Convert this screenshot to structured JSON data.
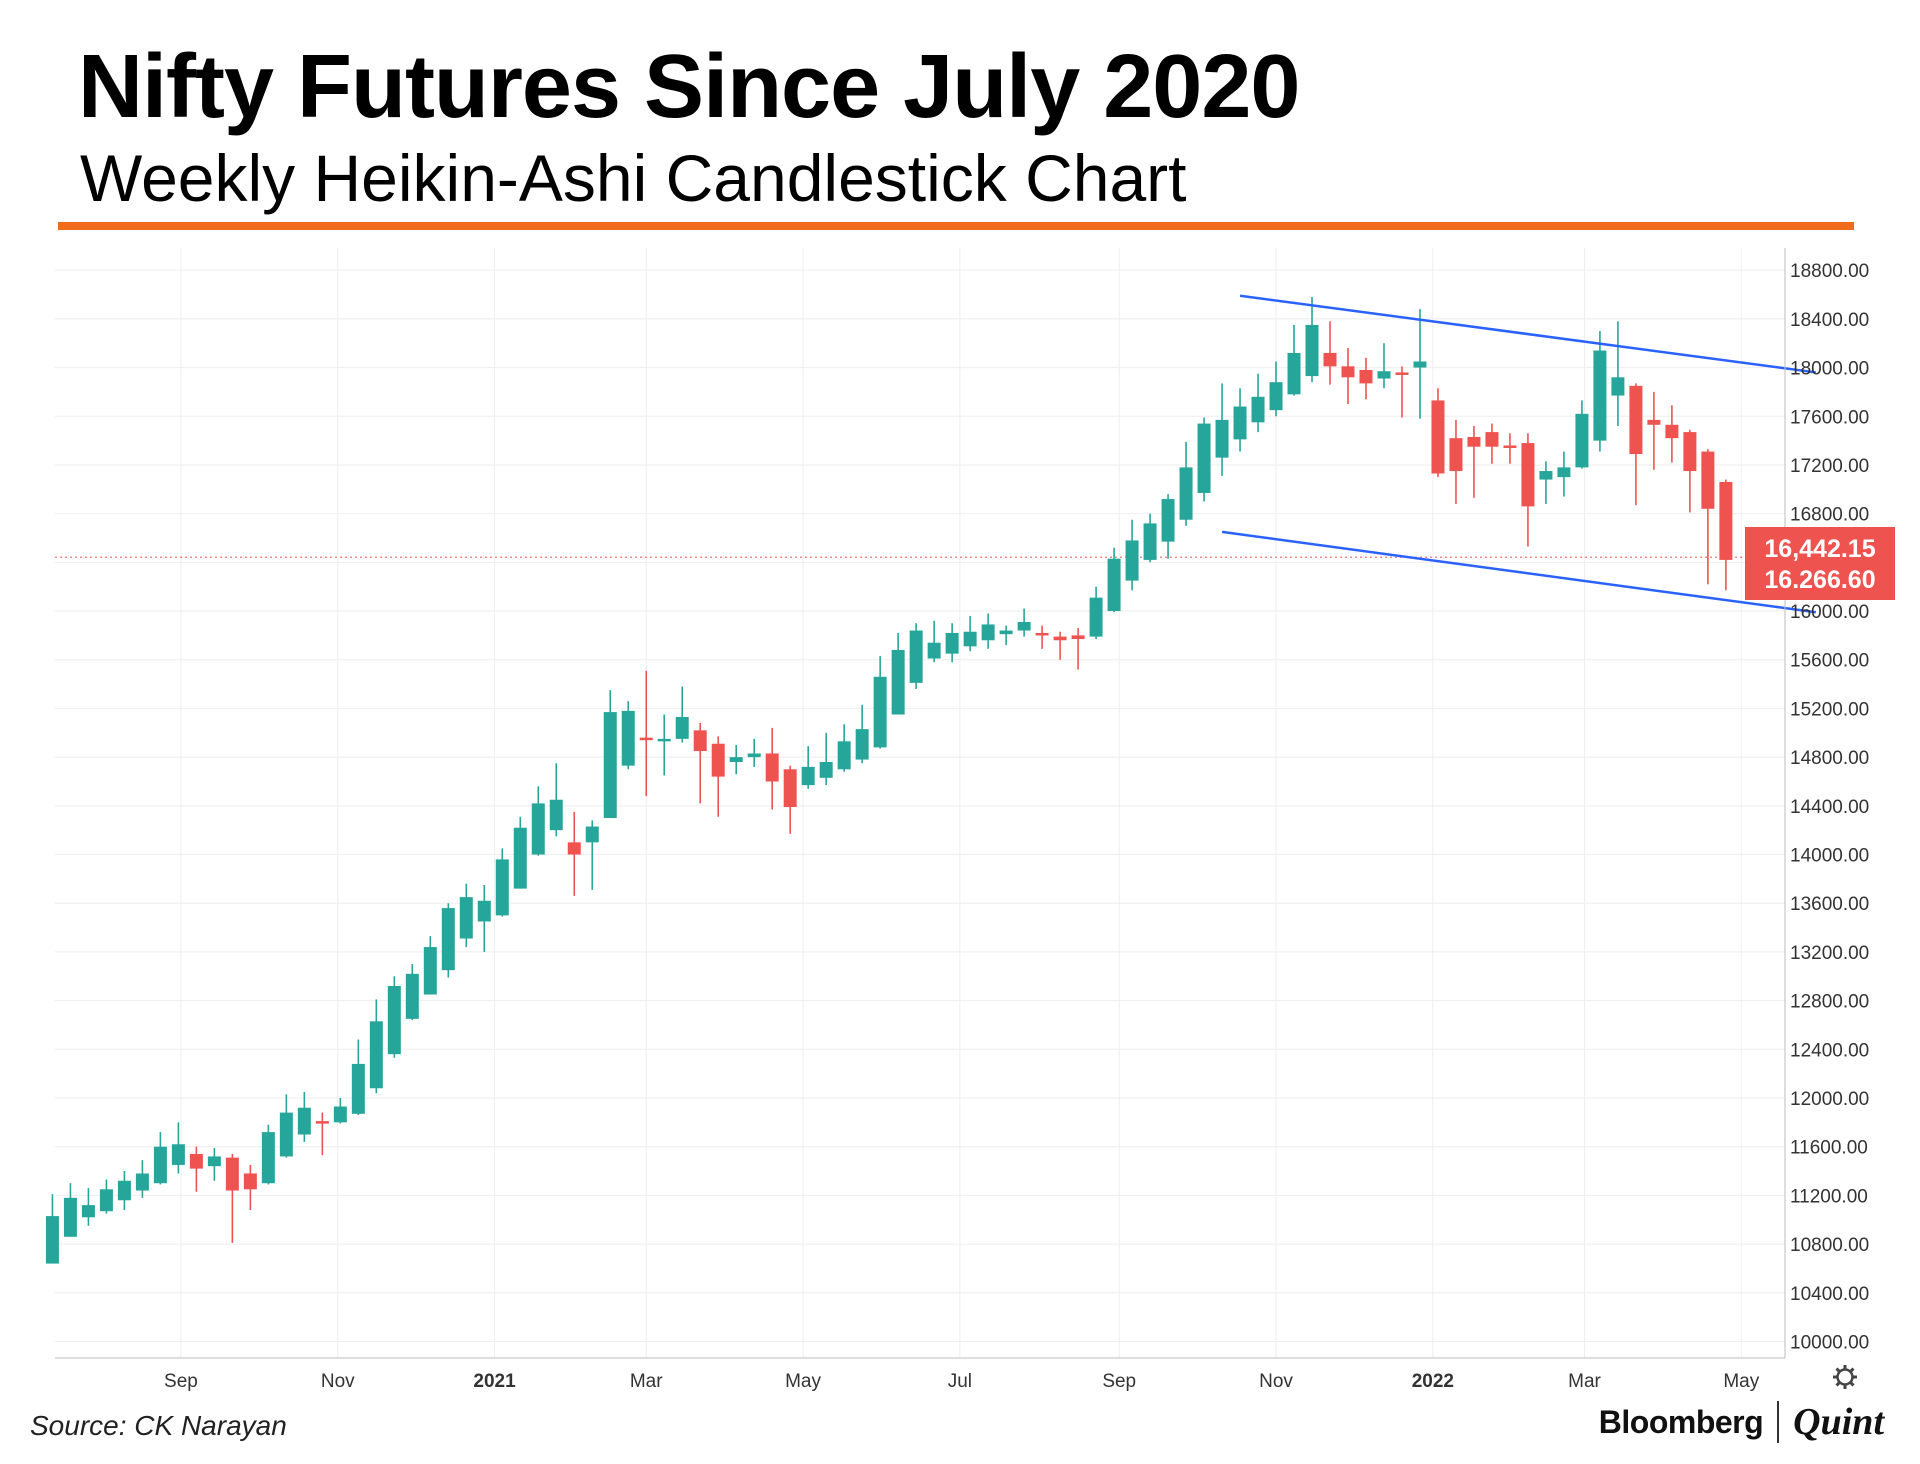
{
  "header": {
    "title": "Nifty Futures Since July 2020",
    "subtitle": "Weekly Heikin-Ashi Candlestick Chart"
  },
  "footer": {
    "source": "Source: CK Narayan",
    "brand_primary": "Bloomberg",
    "brand_secondary": "Quint"
  },
  "colors": {
    "accent_rule": "#f26b1d",
    "bull": "#26a69a",
    "bear": "#ef5350",
    "channel": "#2962ff",
    "grid": "#eeeeee"
  },
  "icons": {
    "settings": "gear-icon"
  },
  "chart_data": {
    "type": "candlestick",
    "style": "Heikin-Ashi",
    "interval": "weekly",
    "title": "Nifty Futures Since July 2020",
    "subtitle": "Weekly Heikin-Ashi Candlestick Chart",
    "ylim": [
      9930,
      18900
    ],
    "xlim": [
      "2020-07-14",
      "2022-05-18"
    ],
    "y_ticks": [
      "10000.00",
      "10400.00",
      "10800.00",
      "11200.00",
      "11600.00",
      "12000.00",
      "12400.00",
      "12800.00",
      "13200.00",
      "13600.00",
      "14000.00",
      "14400.00",
      "14800.00",
      "15200.00",
      "15600.00",
      "16000.00",
      "16400.00",
      "16800.00",
      "17200.00",
      "17600.00",
      "18000.00",
      "18400.00",
      "18800.00"
    ],
    "x_ticks": [
      {
        "date": "2020-09-01",
        "label": "Sep",
        "bold": false
      },
      {
        "date": "2020-11-01",
        "label": "Nov",
        "bold": false
      },
      {
        "date": "2021-01-01",
        "label": "2021",
        "bold": true
      },
      {
        "date": "2021-03-01",
        "label": "Mar",
        "bold": false
      },
      {
        "date": "2021-05-01",
        "label": "May",
        "bold": false
      },
      {
        "date": "2021-07-01",
        "label": "Jul",
        "bold": false
      },
      {
        "date": "2021-09-01",
        "label": "Sep",
        "bold": false
      },
      {
        "date": "2021-11-01",
        "label": "Nov",
        "bold": false
      },
      {
        "date": "2022-01-01",
        "label": "2022",
        "bold": true
      },
      {
        "date": "2022-03-01",
        "label": "Mar",
        "bold": false
      },
      {
        "date": "2022-05-01",
        "label": "May",
        "bold": false
      }
    ],
    "grid": true,
    "price_labels": [
      "16,442.15",
      "16.266.60"
    ],
    "current_price": 16442.15,
    "channel_lines": [
      {
        "x": [
          "2021-10-18",
          "2022-05-30"
        ],
        "y": [
          18590,
          17960
        ]
      },
      {
        "x": [
          "2021-10-11",
          "2022-05-30"
        ],
        "y": [
          16650,
          15990
        ]
      }
    ],
    "candles": [
      {
        "date": "2020-07-13",
        "o": 10640,
        "h": 11210,
        "l": 10640,
        "c": 11030
      },
      {
        "date": "2020-07-20",
        "o": 10860,
        "h": 11300,
        "l": 10860,
        "c": 11180
      },
      {
        "date": "2020-07-27",
        "o": 11020,
        "h": 11260,
        "l": 10950,
        "c": 11120
      },
      {
        "date": "2020-08-03",
        "o": 11070,
        "h": 11330,
        "l": 11050,
        "c": 11250
      },
      {
        "date": "2020-08-10",
        "o": 11160,
        "h": 11400,
        "l": 11080,
        "c": 11320
      },
      {
        "date": "2020-08-17",
        "o": 11240,
        "h": 11490,
        "l": 11180,
        "c": 11380
      },
      {
        "date": "2020-08-24",
        "o": 11300,
        "h": 11720,
        "l": 11290,
        "c": 11600
      },
      {
        "date": "2020-08-31",
        "o": 11450,
        "h": 11800,
        "l": 11380,
        "c": 11620
      },
      {
        "date": "2020-09-07",
        "o": 11540,
        "h": 11600,
        "l": 11230,
        "c": 11420
      },
      {
        "date": "2020-09-14",
        "o": 11440,
        "h": 11590,
        "l": 11320,
        "c": 11520
      },
      {
        "date": "2020-09-21",
        "o": 11510,
        "h": 11540,
        "l": 10810,
        "c": 11240
      },
      {
        "date": "2020-09-28",
        "o": 11380,
        "h": 11450,
        "l": 11080,
        "c": 11250
      },
      {
        "date": "2020-10-05",
        "o": 11300,
        "h": 11780,
        "l": 11290,
        "c": 11720
      },
      {
        "date": "2020-10-12",
        "o": 11520,
        "h": 12030,
        "l": 11510,
        "c": 11880
      },
      {
        "date": "2020-10-19",
        "o": 11700,
        "h": 12050,
        "l": 11640,
        "c": 11920
      },
      {
        "date": "2020-10-26",
        "o": 11810,
        "h": 11880,
        "l": 11530,
        "c": 11790
      },
      {
        "date": "2020-11-02",
        "o": 11800,
        "h": 12000,
        "l": 11790,
        "c": 11930
      },
      {
        "date": "2020-11-09",
        "o": 11870,
        "h": 12480,
        "l": 11860,
        "c": 12280
      },
      {
        "date": "2020-11-16",
        "o": 12080,
        "h": 12810,
        "l": 12040,
        "c": 12630
      },
      {
        "date": "2020-11-23",
        "o": 12360,
        "h": 13000,
        "l": 12330,
        "c": 12920
      },
      {
        "date": "2020-11-30",
        "o": 12650,
        "h": 13100,
        "l": 12640,
        "c": 13020
      },
      {
        "date": "2020-12-07",
        "o": 12850,
        "h": 13330,
        "l": 12850,
        "c": 13240
      },
      {
        "date": "2020-12-14",
        "o": 13050,
        "h": 13600,
        "l": 12990,
        "c": 13560
      },
      {
        "date": "2020-12-21",
        "o": 13310,
        "h": 13760,
        "l": 13240,
        "c": 13650
      },
      {
        "date": "2020-12-28",
        "o": 13450,
        "h": 13750,
        "l": 13200,
        "c": 13620
      },
      {
        "date": "2021-01-04",
        "o": 13500,
        "h": 14050,
        "l": 13490,
        "c": 13960
      },
      {
        "date": "2021-01-11",
        "o": 13720,
        "h": 14310,
        "l": 13720,
        "c": 14220
      },
      {
        "date": "2021-01-18",
        "o": 14000,
        "h": 14560,
        "l": 13990,
        "c": 14420
      },
      {
        "date": "2021-01-25",
        "o": 14200,
        "h": 14750,
        "l": 14150,
        "c": 14450
      },
      {
        "date": "2021-02-01",
        "o": 14100,
        "h": 14350,
        "l": 13660,
        "c": 14000
      },
      {
        "date": "2021-02-08",
        "o": 14100,
        "h": 14280,
        "l": 13710,
        "c": 14230
      },
      {
        "date": "2021-02-15",
        "o": 14300,
        "h": 15350,
        "l": 14300,
        "c": 15170
      },
      {
        "date": "2021-02-22",
        "o": 14730,
        "h": 15260,
        "l": 14700,
        "c": 15180
      },
      {
        "date": "2021-03-01",
        "o": 14960,
        "h": 15510,
        "l": 14480,
        "c": 14940
      },
      {
        "date": "2021-03-08",
        "o": 14940,
        "h": 15150,
        "l": 14650,
        "c": 14950
      },
      {
        "date": "2021-03-15",
        "o": 14950,
        "h": 15380,
        "l": 14920,
        "c": 15130
      },
      {
        "date": "2021-03-22",
        "o": 15020,
        "h": 15080,
        "l": 14420,
        "c": 14850
      },
      {
        "date": "2021-03-29",
        "o": 14910,
        "h": 14970,
        "l": 14310,
        "c": 14640
      },
      {
        "date": "2021-04-05",
        "o": 14760,
        "h": 14900,
        "l": 14660,
        "c": 14800
      },
      {
        "date": "2021-04-12",
        "o": 14800,
        "h": 14950,
        "l": 14720,
        "c": 14830
      },
      {
        "date": "2021-04-19",
        "o": 14830,
        "h": 15040,
        "l": 14370,
        "c": 14600
      },
      {
        "date": "2021-04-26",
        "o": 14700,
        "h": 14730,
        "l": 14170,
        "c": 14390
      },
      {
        "date": "2021-05-03",
        "o": 14570,
        "h": 14890,
        "l": 14540,
        "c": 14720
      },
      {
        "date": "2021-05-10",
        "o": 14630,
        "h": 15000,
        "l": 14570,
        "c": 14760
      },
      {
        "date": "2021-05-17",
        "o": 14700,
        "h": 15070,
        "l": 14680,
        "c": 14930
      },
      {
        "date": "2021-05-24",
        "o": 14780,
        "h": 15230,
        "l": 14750,
        "c": 15030
      },
      {
        "date": "2021-05-31",
        "o": 14880,
        "h": 15630,
        "l": 14870,
        "c": 15460
      },
      {
        "date": "2021-06-07",
        "o": 15150,
        "h": 15820,
        "l": 15150,
        "c": 15680
      },
      {
        "date": "2021-06-14",
        "o": 15410,
        "h": 15900,
        "l": 15360,
        "c": 15840
      },
      {
        "date": "2021-06-21",
        "o": 15610,
        "h": 15920,
        "l": 15580,
        "c": 15740
      },
      {
        "date": "2021-06-28",
        "o": 15650,
        "h": 15900,
        "l": 15580,
        "c": 15820
      },
      {
        "date": "2021-07-05",
        "o": 15710,
        "h": 15960,
        "l": 15670,
        "c": 15830
      },
      {
        "date": "2021-07-12",
        "o": 15760,
        "h": 15980,
        "l": 15690,
        "c": 15890
      },
      {
        "date": "2021-07-19",
        "o": 15810,
        "h": 15880,
        "l": 15720,
        "c": 15840
      },
      {
        "date": "2021-07-26",
        "o": 15840,
        "h": 16020,
        "l": 15790,
        "c": 15910
      },
      {
        "date": "2021-08-02",
        "o": 15820,
        "h": 15880,
        "l": 15690,
        "c": 15810
      },
      {
        "date": "2021-08-09",
        "o": 15790,
        "h": 15830,
        "l": 15600,
        "c": 15760
      },
      {
        "date": "2021-08-16",
        "o": 15800,
        "h": 15860,
        "l": 15520,
        "c": 15770
      },
      {
        "date": "2021-08-23",
        "o": 15790,
        "h": 16200,
        "l": 15770,
        "c": 16110
      },
      {
        "date": "2021-08-30",
        "o": 16000,
        "h": 16520,
        "l": 15990,
        "c": 16430
      },
      {
        "date": "2021-09-06",
        "o": 16250,
        "h": 16750,
        "l": 16170,
        "c": 16580
      },
      {
        "date": "2021-09-13",
        "o": 16420,
        "h": 16800,
        "l": 16400,
        "c": 16720
      },
      {
        "date": "2021-09-20",
        "o": 16570,
        "h": 16960,
        "l": 16430,
        "c": 16920
      },
      {
        "date": "2021-09-27",
        "o": 16750,
        "h": 17390,
        "l": 16700,
        "c": 17180
      },
      {
        "date": "2021-10-04",
        "o": 16970,
        "h": 17590,
        "l": 16900,
        "c": 17540
      },
      {
        "date": "2021-10-11",
        "o": 17260,
        "h": 17870,
        "l": 17110,
        "c": 17570
      },
      {
        "date": "2021-10-18",
        "o": 17410,
        "h": 17830,
        "l": 17310,
        "c": 17680
      },
      {
        "date": "2021-10-25",
        "o": 17550,
        "h": 17950,
        "l": 17470,
        "c": 17760
      },
      {
        "date": "2021-11-01",
        "o": 17650,
        "h": 18050,
        "l": 17600,
        "c": 17880
      },
      {
        "date": "2021-11-08",
        "o": 17780,
        "h": 18350,
        "l": 17770,
        "c": 18120
      },
      {
        "date": "2021-11-15",
        "o": 17930,
        "h": 18580,
        "l": 17880,
        "c": 18350
      },
      {
        "date": "2021-11-22",
        "o": 18120,
        "h": 18380,
        "l": 17860,
        "c": 18010
      },
      {
        "date": "2021-11-29",
        "o": 18010,
        "h": 18160,
        "l": 17700,
        "c": 17920
      },
      {
        "date": "2021-12-06",
        "o": 17980,
        "h": 18080,
        "l": 17740,
        "c": 17870
      },
      {
        "date": "2021-12-13",
        "o": 17910,
        "h": 18200,
        "l": 17830,
        "c": 17970
      },
      {
        "date": "2021-12-20",
        "o": 17960,
        "h": 18010,
        "l": 17590,
        "c": 17940
      },
      {
        "date": "2021-12-27",
        "o": 18000,
        "h": 18480,
        "l": 17580,
        "c": 18050
      },
      {
        "date": "2022-01-03",
        "o": 17730,
        "h": 17830,
        "l": 17100,
        "c": 17130
      },
      {
        "date": "2022-01-10",
        "o": 17420,
        "h": 17570,
        "l": 16880,
        "c": 17150
      },
      {
        "date": "2022-01-17",
        "o": 17430,
        "h": 17520,
        "l": 16930,
        "c": 17350
      },
      {
        "date": "2022-01-24",
        "o": 17470,
        "h": 17540,
        "l": 17210,
        "c": 17350
      },
      {
        "date": "2022-01-31",
        "o": 17360,
        "h": 17460,
        "l": 17210,
        "c": 17350
      },
      {
        "date": "2022-02-07",
        "o": 17380,
        "h": 17460,
        "l": 16530,
        "c": 16860
      },
      {
        "date": "2022-02-14",
        "o": 17080,
        "h": 17230,
        "l": 16880,
        "c": 17150
      },
      {
        "date": "2022-02-21",
        "o": 17100,
        "h": 17310,
        "l": 16940,
        "c": 17180
      },
      {
        "date": "2022-02-28",
        "o": 17180,
        "h": 17730,
        "l": 17170,
        "c": 17620
      },
      {
        "date": "2022-03-07",
        "o": 17400,
        "h": 18300,
        "l": 17310,
        "c": 18140
      },
      {
        "date": "2022-03-14",
        "o": 17770,
        "h": 18380,
        "l": 17520,
        "c": 17920
      },
      {
        "date": "2022-03-21",
        "o": 17850,
        "h": 17870,
        "l": 16870,
        "c": 17290
      },
      {
        "date": "2022-03-28",
        "o": 17570,
        "h": 17800,
        "l": 17160,
        "c": 17530
      },
      {
        "date": "2022-04-04",
        "o": 17530,
        "h": 17690,
        "l": 17220,
        "c": 17420
      },
      {
        "date": "2022-04-11",
        "o": 17470,
        "h": 17490,
        "l": 16810,
        "c": 17150
      },
      {
        "date": "2022-04-18",
        "o": 17310,
        "h": 17330,
        "l": 16220,
        "c": 16840
      },
      {
        "date": "2022-04-25",
        "o": 17060,
        "h": 17080,
        "l": 16170,
        "c": 16420
      }
    ]
  }
}
